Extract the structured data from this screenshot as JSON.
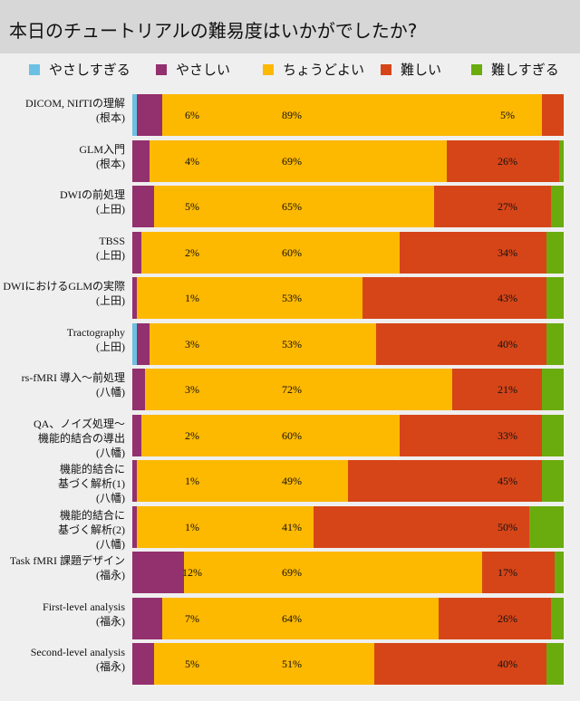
{
  "title": "本日のチュートリアルの難易度はいかがでしたか?",
  "chart_data": {
    "type": "bar",
    "orientation": "horizontal",
    "stacked": true,
    "title": "本日のチュートリアルの難易度はいかがでしたか?",
    "xlim": [
      0,
      100
    ],
    "legend_position": "top",
    "categories": [
      [
        "DICOM, NIfTIの理解",
        "(根本)"
      ],
      [
        "GLM入門",
        "(根本)"
      ],
      [
        "DWIの前処理",
        "(上田)"
      ],
      [
        "TBSS",
        "(上田)"
      ],
      [
        "DWIにおけるGLMの実際",
        "(上田)"
      ],
      [
        "Tractography",
        "(上田)"
      ],
      [
        "rs-fMRI 導入～前処理",
        "(八幡)"
      ],
      [
        "QA、ノイズ処理～",
        "機能的結合の導出",
        "(八幡)"
      ],
      [
        "機能的結合に",
        "基づく解析(1)",
        "(八幡)"
      ],
      [
        "機能的結合に",
        "基づく解析(2)",
        "(八幡)"
      ],
      [
        "Task fMRI 課題デザイン",
        "(福永)"
      ],
      [
        "First-level analysis",
        "(福永)"
      ],
      [
        "Second-level analysis",
        "(福永)"
      ]
    ],
    "series": [
      {
        "name": "やさしすぎる",
        "color": "#6cc0e3",
        "labeled": false,
        "values": [
          1,
          0,
          0,
          0,
          0,
          1,
          0,
          0,
          0,
          0,
          0,
          0,
          0
        ]
      },
      {
        "name": "やさしい",
        "color": "#93306e",
        "labeled": true,
        "values": [
          6,
          4,
          5,
          2,
          1,
          3,
          3,
          2,
          1,
          1,
          12,
          7,
          5
        ]
      },
      {
        "name": "ちょうどよい",
        "color": "#fdb800",
        "labeled": true,
        "values": [
          89,
          69,
          65,
          60,
          53,
          53,
          72,
          60,
          49,
          41,
          69,
          64,
          51
        ]
      },
      {
        "name": "難しい",
        "color": "#d64518",
        "labeled": true,
        "values": [
          5,
          26,
          27,
          34,
          43,
          40,
          21,
          33,
          45,
          50,
          17,
          26,
          40
        ]
      },
      {
        "name": "難しすぎる",
        "color": "#6aab0e",
        "labeled": false,
        "values": [
          0,
          1,
          3,
          4,
          4,
          4,
          5,
          5,
          5,
          8,
          2,
          3,
          4
        ]
      }
    ]
  }
}
